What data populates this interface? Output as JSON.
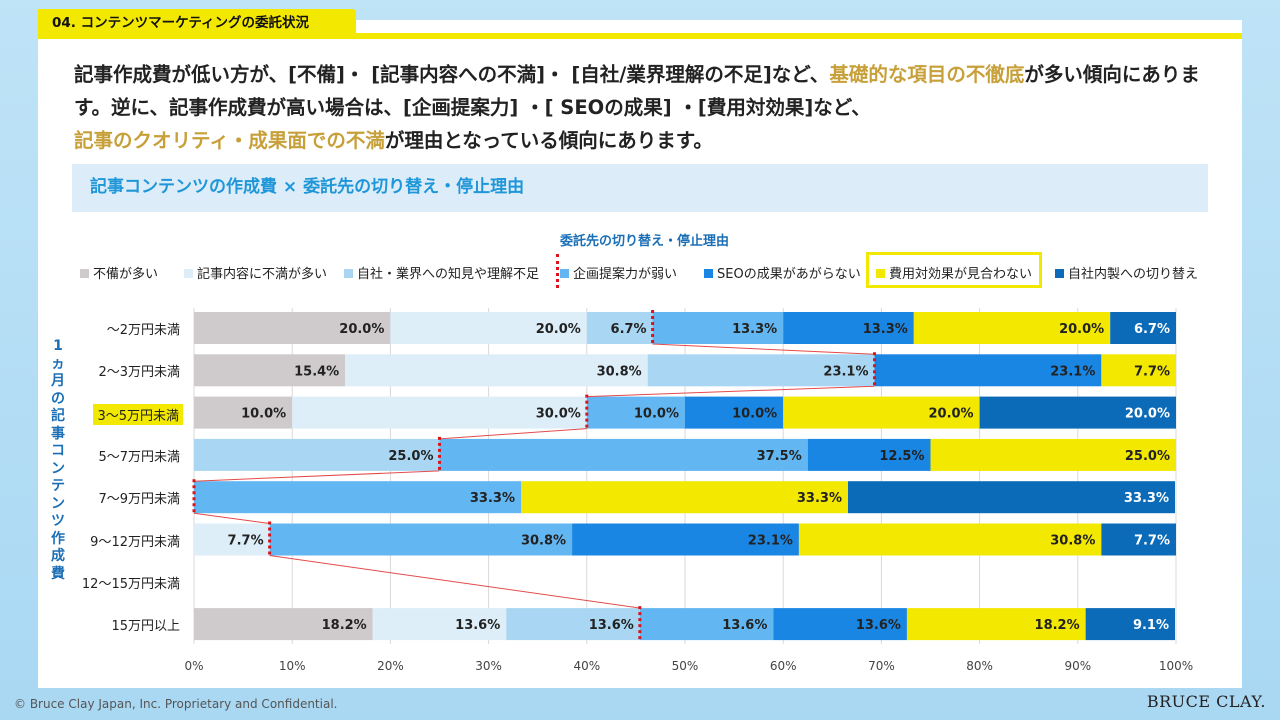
{
  "section_tab": "04. コンテンツマーケティングの委託状況",
  "lead": {
    "p1": "記事作成費が低い方が、[不備]・ [記事内容への不満]・ [自社/業界理解の不足]など、",
    "p1_hl": "基礎的な項目の不徹底",
    "p2": "が多い傾向にあります。逆に、記事作成費が高い場合は、[企画提案力] ・[ SEOの成果] ・[費用対効果]など、",
    "p3_hl": "記事のクオリティ・成果面での不満",
    "p3": "が理由となっている傾向にあります。"
  },
  "subtitle": "記事コンテンツの作成費 × 委託先の切り替え・停止理由",
  "footer": "© Bruce Clay Japan, Inc. Proprietary and Confidential.",
  "logo": "BRUCE CLAY.",
  "chart_data": {
    "type": "bar",
    "orientation": "horizontal-stacked-100",
    "title": "委託先の切り替え・停止理由",
    "ylabel": "1ヵ月の記事コンテンツ作成費",
    "ylabel_chars": [
      "1",
      "ヵ",
      "月",
      "の",
      "記",
      "事",
      "コ",
      "ン",
      "テ",
      "ン",
      "ツ",
      "作",
      "成",
      "費"
    ],
    "xlim": [
      0,
      100
    ],
    "xticks": [
      "0%",
      "10%",
      "20%",
      "30%",
      "40%",
      "50%",
      "60%",
      "70%",
      "80%",
      "90%",
      "100%"
    ],
    "highlighted_category": "3～5万円未満",
    "highlighted_series": "費用対効果が見合わない",
    "categories": [
      "～2万円未満",
      "2～3万円未満",
      "3～5万円未満",
      "5～7万円未満",
      "7～9万円未満",
      "9～12万円未満",
      "12～15万円未満",
      "15万円以上"
    ],
    "series": [
      {
        "name": "不備が多い",
        "color": "#cfcbcc",
        "values": [
          20.0,
          15.4,
          10.0,
          0,
          0,
          0,
          null,
          18.2
        ]
      },
      {
        "name": "記事内容に不満が多い",
        "color": "#ddeef9",
        "values": [
          20.0,
          30.8,
          30.0,
          0,
          0,
          7.7,
          null,
          13.6
        ]
      },
      {
        "name": "自社・業界への知見や理解不足",
        "color": "#a9d6f2",
        "values": [
          6.7,
          23.1,
          0,
          25.0,
          0,
          0,
          null,
          13.6
        ]
      },
      {
        "name": "企画提案力が弱い",
        "color": "#62b6f2",
        "values": [
          13.3,
          0,
          10.0,
          37.5,
          33.3,
          30.8,
          null,
          13.6
        ]
      },
      {
        "name": "SEOの成果があがらない",
        "color": "#1a86e3",
        "values": [
          13.3,
          23.1,
          10.0,
          12.5,
          0,
          23.1,
          null,
          13.6
        ]
      },
      {
        "name": "費用対効果が見合わない",
        "color": "#f3e800",
        "values": [
          20.0,
          7.7,
          20.0,
          25.0,
          33.3,
          30.8,
          null,
          18.2
        ]
      },
      {
        "name": "自社内製への切り替え",
        "color": "#0b6bb8",
        "values": [
          6.7,
          0,
          20.0,
          0,
          33.3,
          7.7,
          null,
          9.1
        ]
      }
    ],
    "divider_after_series": "自社・業界への知見や理解不足"
  }
}
